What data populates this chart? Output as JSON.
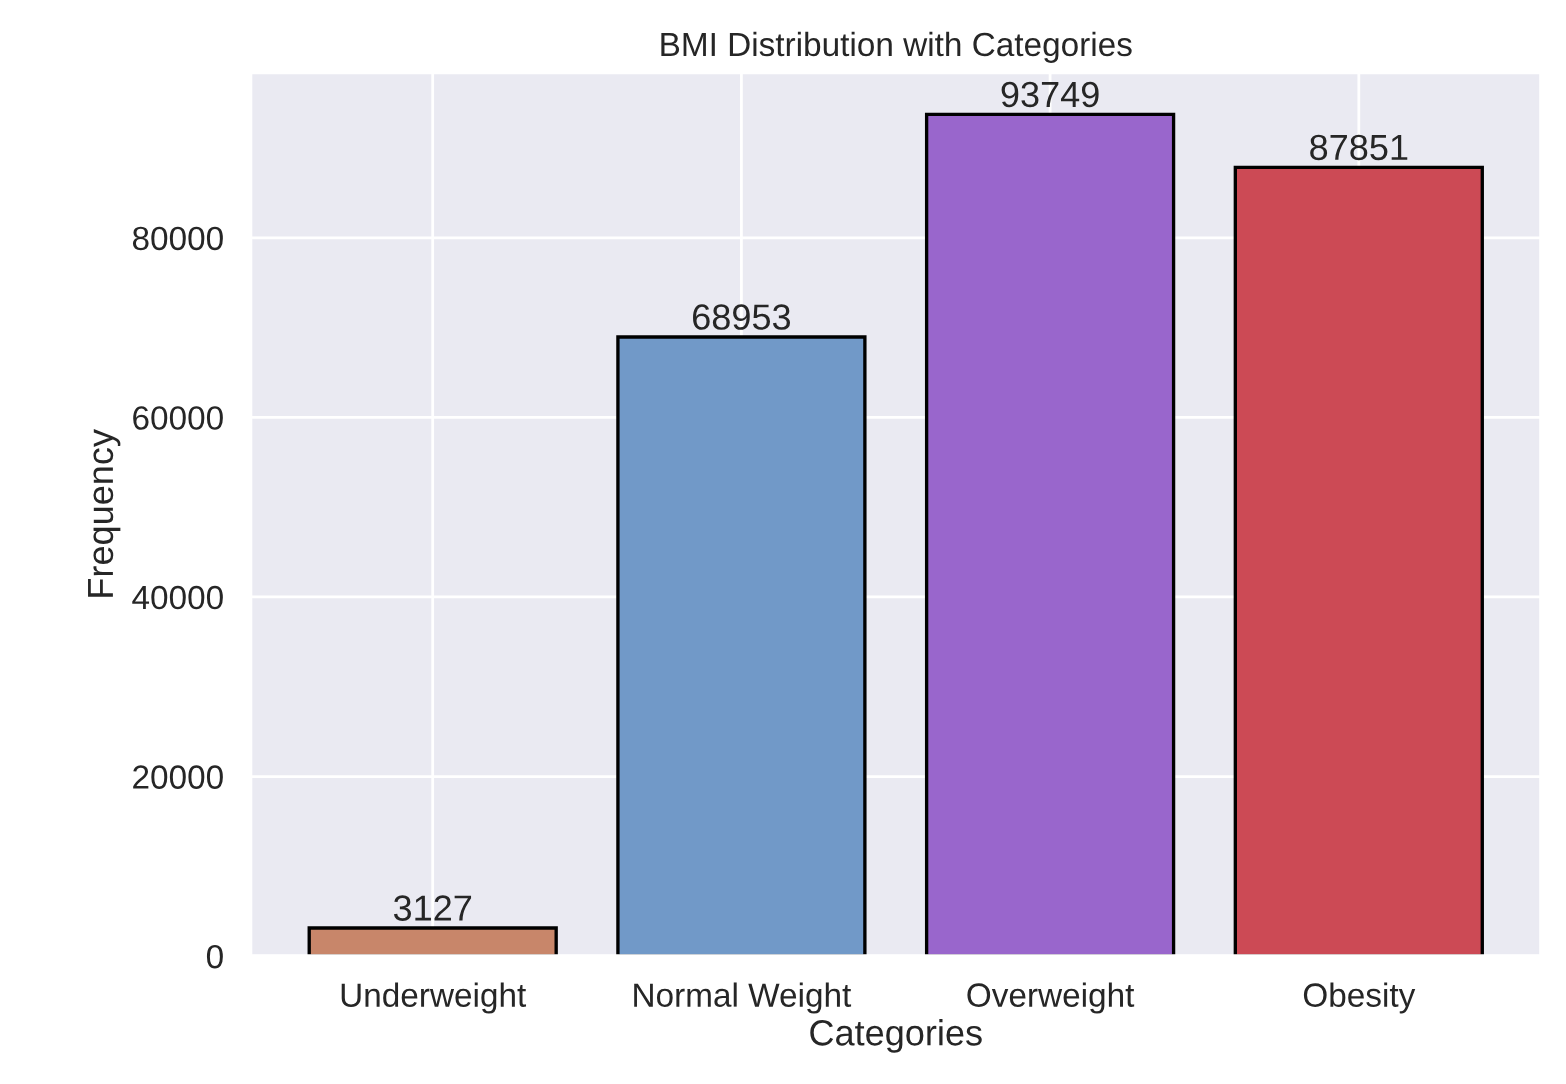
{
  "chart_data": {
    "type": "bar",
    "title": "BMI Distribution with Categories",
    "xlabel": "Categories",
    "ylabel": "Frequency",
    "categories": [
      "Underweight",
      "Normal Weight",
      "Overweight",
      "Obesity"
    ],
    "values": [
      3127,
      68953,
      93749,
      87851
    ],
    "colors": [
      "#c8866a",
      "#7199c8",
      "#9966cc",
      "#cc4a55"
    ],
    "ylim": [
      0,
      98400
    ],
    "yticks": [
      0,
      20000,
      40000,
      60000,
      80000
    ],
    "grid": true,
    "data_labels": true
  }
}
